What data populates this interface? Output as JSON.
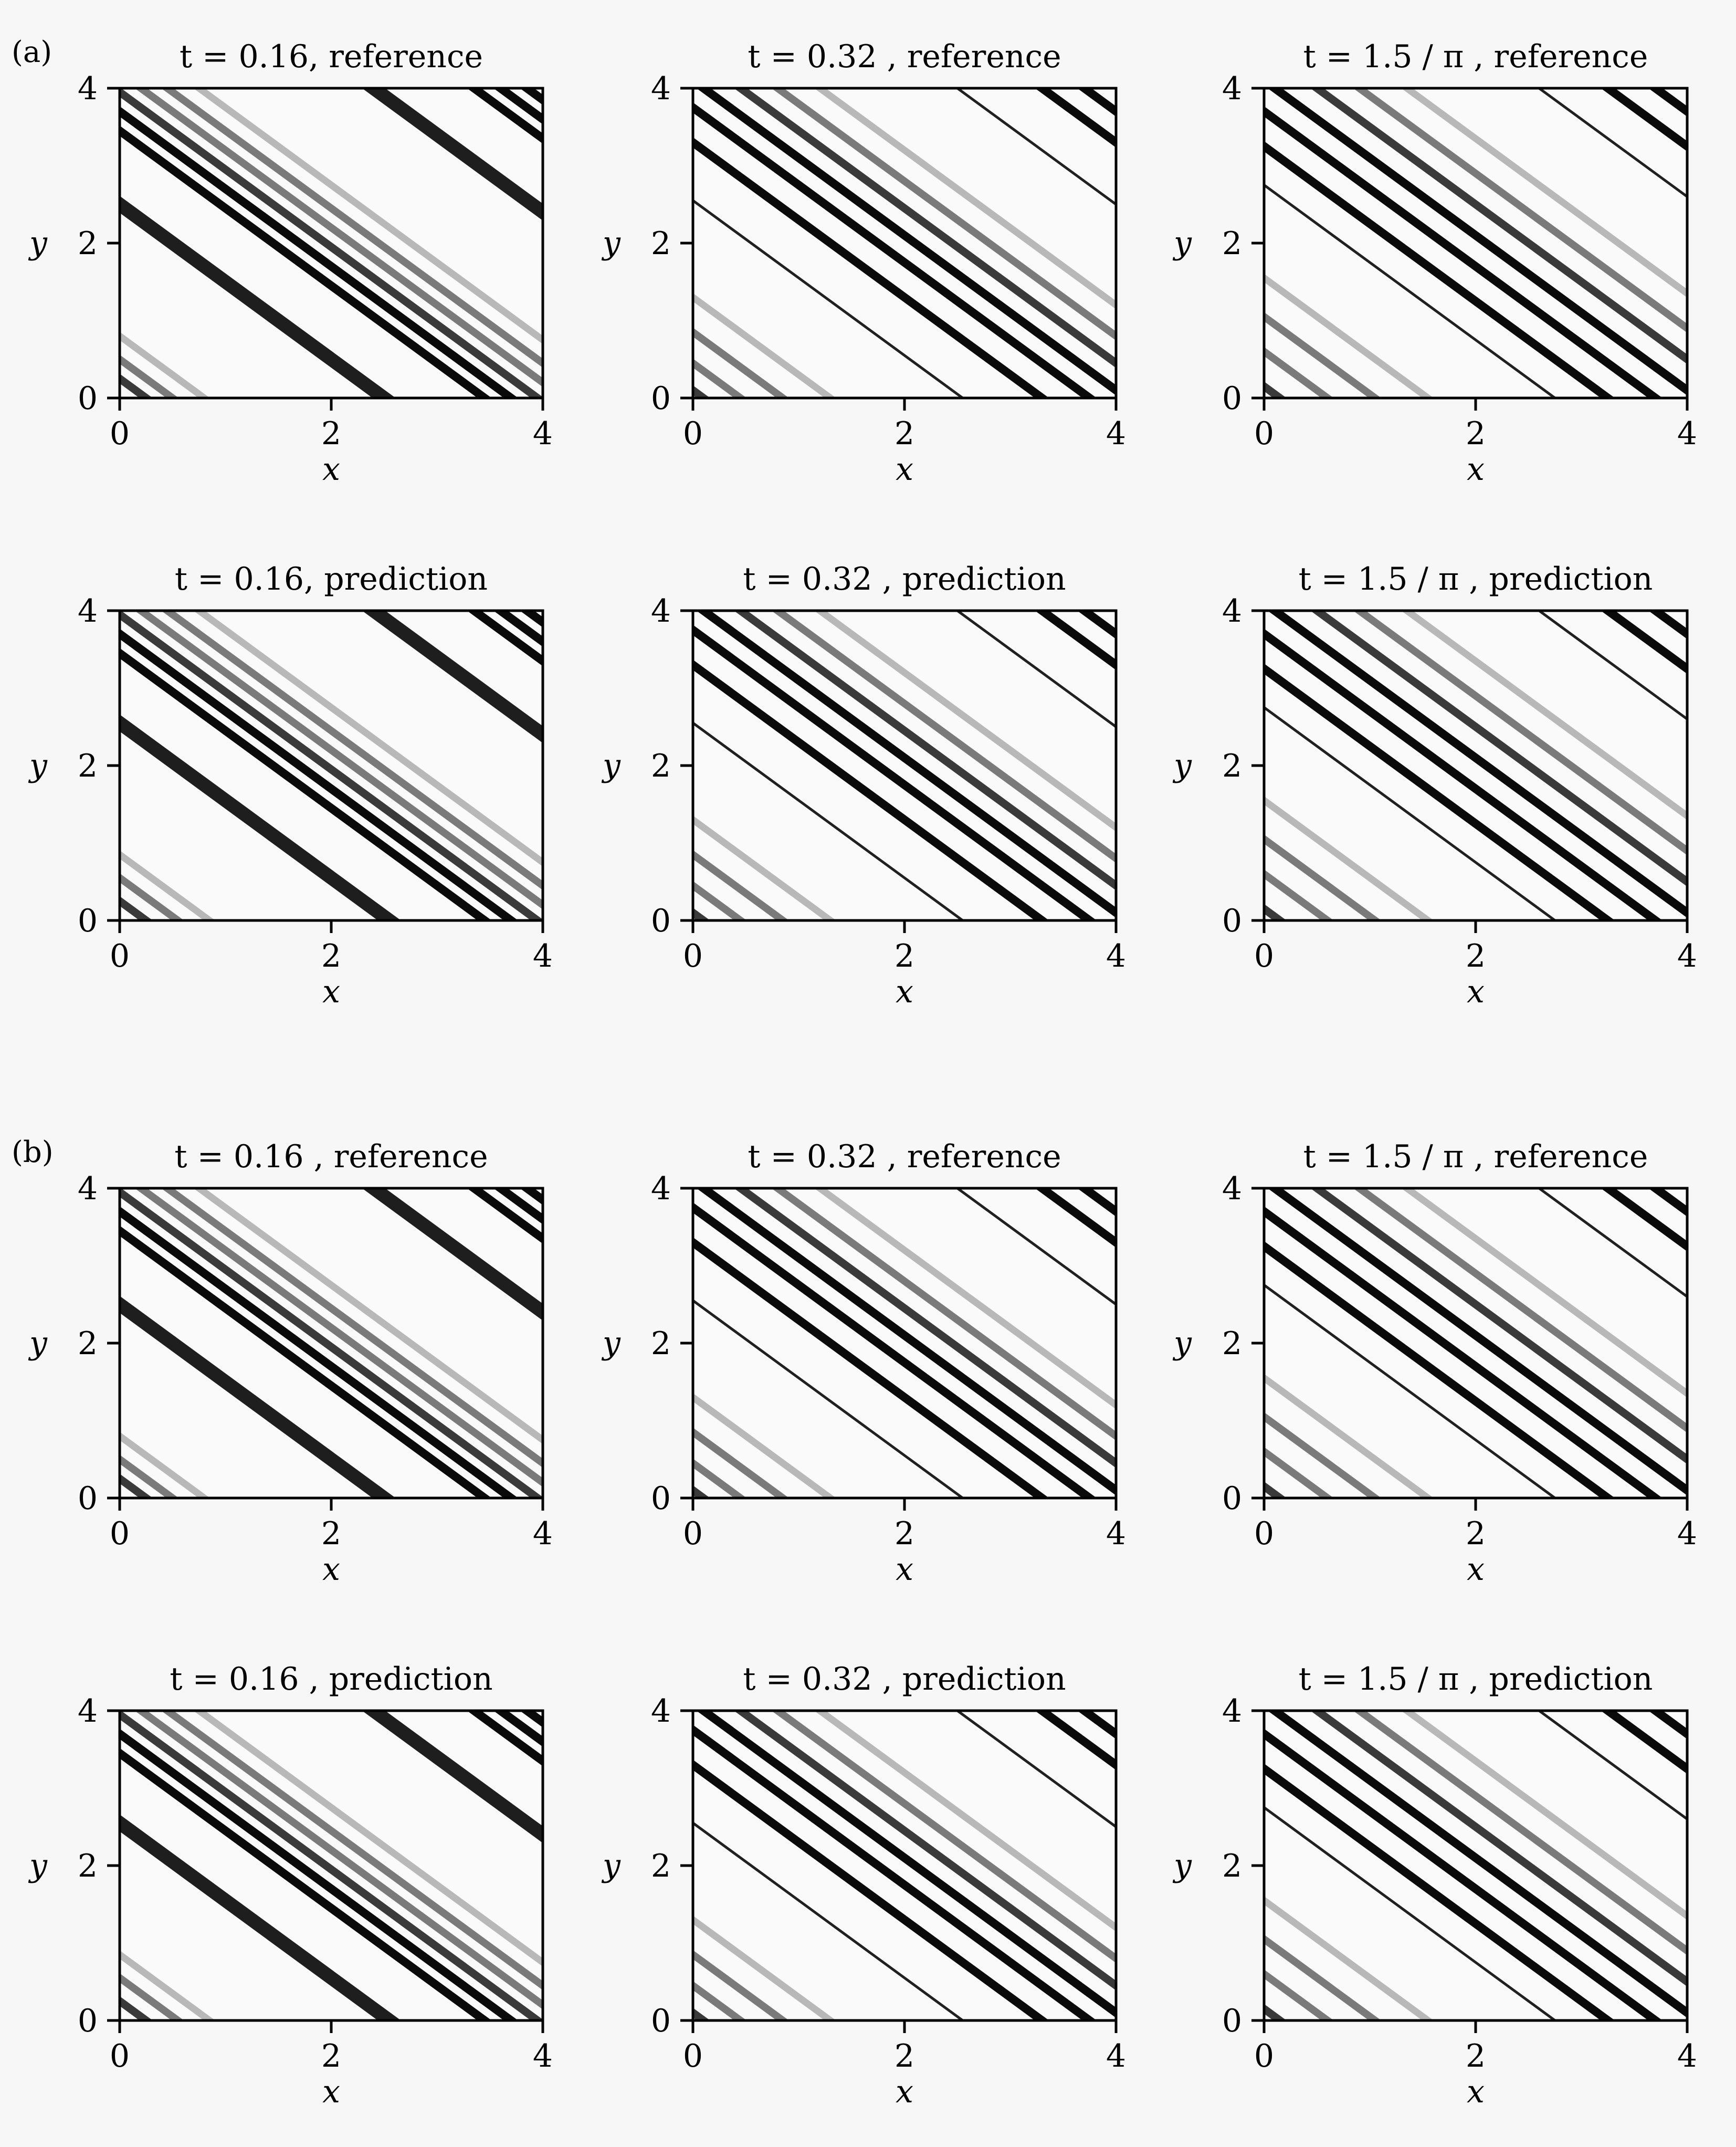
{
  "panel_labels": [
    "(a)",
    "(b)"
  ],
  "chart_data": [
    {
      "type": "heatmap",
      "group": "(a)",
      "title": "t = 0.16, reference",
      "xlabel": "x",
      "ylabel": "y",
      "xlim": [
        0,
        4
      ],
      "ylim": [
        0,
        4
      ],
      "xticks": [
        0,
        2,
        4
      ],
      "yticks": [
        0,
        2,
        4
      ],
      "stripes": [
        {
          "c": 0.8,
          "shade": "light"
        },
        {
          "c": 0.5,
          "shade": "medium"
        },
        {
          "c": 0.25,
          "shade": "dark"
        },
        {
          "c": 2.5,
          "shade": "black-wide"
        },
        {
          "c": 3.45,
          "shade": "black"
        },
        {
          "c": 3.7,
          "shade": "black"
        },
        {
          "c": 3.95,
          "shade": "dark"
        },
        {
          "c": 4.2,
          "shade": "medium"
        },
        {
          "c": 4.45,
          "shade": "medium"
        },
        {
          "c": 4.75,
          "shade": "light"
        },
        {
          "c": 6.4,
          "shade": "black-wide"
        },
        {
          "c": 7.35,
          "shade": "black"
        },
        {
          "c": 7.6,
          "shade": "black"
        },
        {
          "c": 7.85,
          "shade": "black"
        }
      ]
    },
    {
      "type": "heatmap",
      "group": "(a)",
      "title": "t = 0.32 , reference",
      "xlabel": "x",
      "ylabel": "y",
      "xlim": [
        0,
        4
      ],
      "ylim": [
        0,
        4
      ],
      "xticks": [
        0,
        2,
        4
      ],
      "yticks": [
        0,
        2,
        4
      ],
      "stripes": [
        {
          "c": 0.1,
          "shade": "dark"
        },
        {
          "c": 0.45,
          "shade": "medium"
        },
        {
          "c": 0.85,
          "shade": "medium"
        },
        {
          "c": 1.3,
          "shade": "light"
        },
        {
          "c": 2.55,
          "shade": "thin"
        },
        {
          "c": 3.3,
          "shade": "black"
        },
        {
          "c": 3.75,
          "shade": "black"
        },
        {
          "c": 4.1,
          "shade": "black"
        },
        {
          "c": 4.45,
          "shade": "dark"
        },
        {
          "c": 4.8,
          "shade": "medium"
        },
        {
          "c": 5.2,
          "shade": "light"
        },
        {
          "c": 6.5,
          "shade": "thin"
        },
        {
          "c": 7.3,
          "shade": "black"
        },
        {
          "c": 7.7,
          "shade": "black"
        }
      ]
    },
    {
      "type": "heatmap",
      "group": "(a)",
      "title": "t = 1.5 / π , reference",
      "xlabel": "x",
      "ylabel": "y",
      "xlim": [
        0,
        4
      ],
      "ylim": [
        0,
        4
      ],
      "xticks": [
        0,
        2,
        4
      ],
      "yticks": [
        0,
        2,
        4
      ],
      "stripes": [
        {
          "c": 0.15,
          "shade": "dark"
        },
        {
          "c": 0.6,
          "shade": "medium"
        },
        {
          "c": 1.05,
          "shade": "medium"
        },
        {
          "c": 1.55,
          "shade": "light"
        },
        {
          "c": 2.75,
          "shade": "thin"
        },
        {
          "c": 3.25,
          "shade": "black"
        },
        {
          "c": 3.7,
          "shade": "black"
        },
        {
          "c": 4.1,
          "shade": "black"
        },
        {
          "c": 4.5,
          "shade": "dark"
        },
        {
          "c": 4.9,
          "shade": "medium"
        },
        {
          "c": 5.35,
          "shade": "light"
        },
        {
          "c": 6.6,
          "shade": "thin"
        },
        {
          "c": 7.25,
          "shade": "black"
        },
        {
          "c": 7.7,
          "shade": "black"
        }
      ]
    },
    {
      "type": "heatmap",
      "group": "(a)",
      "title": "t = 0.16, prediction",
      "xlabel": "x",
      "ylabel": "y",
      "xlim": [
        0,
        4
      ],
      "ylim": [
        0,
        4
      ],
      "xticks": [
        0,
        2,
        4
      ],
      "yticks": [
        0,
        2,
        4
      ],
      "stripes": [
        {
          "c": 0.85,
          "shade": "light"
        },
        {
          "c": 0.55,
          "shade": "medium"
        },
        {
          "c": 0.25,
          "shade": "dark"
        },
        {
          "c": 2.55,
          "shade": "black-wide"
        },
        {
          "c": 3.45,
          "shade": "black"
        },
        {
          "c": 3.7,
          "shade": "black"
        },
        {
          "c": 3.95,
          "shade": "dark"
        },
        {
          "c": 4.2,
          "shade": "medium"
        },
        {
          "c": 4.45,
          "shade": "medium"
        },
        {
          "c": 4.75,
          "shade": "light"
        },
        {
          "c": 6.4,
          "shade": "black-wide"
        },
        {
          "c": 7.35,
          "shade": "black"
        },
        {
          "c": 7.6,
          "shade": "black"
        },
        {
          "c": 7.85,
          "shade": "black"
        }
      ]
    },
    {
      "type": "heatmap",
      "group": "(a)",
      "title": "t = 0.32 , prediction",
      "xlabel": "x",
      "ylabel": "y",
      "xlim": [
        0,
        4
      ],
      "ylim": [
        0,
        4
      ],
      "xticks": [
        0,
        2,
        4
      ],
      "yticks": [
        0,
        2,
        4
      ],
      "stripes": [
        {
          "c": 0.1,
          "shade": "dark"
        },
        {
          "c": 0.45,
          "shade": "medium"
        },
        {
          "c": 0.85,
          "shade": "medium"
        },
        {
          "c": 1.3,
          "shade": "light"
        },
        {
          "c": 2.55,
          "shade": "thin"
        },
        {
          "c": 3.3,
          "shade": "black"
        },
        {
          "c": 3.75,
          "shade": "black"
        },
        {
          "c": 4.1,
          "shade": "black"
        },
        {
          "c": 4.45,
          "shade": "dark"
        },
        {
          "c": 4.8,
          "shade": "medium"
        },
        {
          "c": 5.2,
          "shade": "light"
        },
        {
          "c": 6.5,
          "shade": "thin"
        },
        {
          "c": 7.3,
          "shade": "black"
        },
        {
          "c": 7.7,
          "shade": "black"
        }
      ]
    },
    {
      "type": "heatmap",
      "group": "(a)",
      "title": "t = 1.5 / π , prediction",
      "xlabel": "x",
      "ylabel": "y",
      "xlim": [
        0,
        4
      ],
      "ylim": [
        0,
        4
      ],
      "xticks": [
        0,
        2,
        4
      ],
      "yticks": [
        0,
        2,
        4
      ],
      "stripes": [
        {
          "c": 0.15,
          "shade": "dark"
        },
        {
          "c": 0.6,
          "shade": "medium"
        },
        {
          "c": 1.05,
          "shade": "medium"
        },
        {
          "c": 1.55,
          "shade": "light"
        },
        {
          "c": 2.75,
          "shade": "thin"
        },
        {
          "c": 3.25,
          "shade": "black"
        },
        {
          "c": 3.7,
          "shade": "black"
        },
        {
          "c": 4.1,
          "shade": "black"
        },
        {
          "c": 4.5,
          "shade": "dark"
        },
        {
          "c": 4.9,
          "shade": "medium"
        },
        {
          "c": 5.35,
          "shade": "light"
        },
        {
          "c": 6.6,
          "shade": "thin"
        },
        {
          "c": 7.25,
          "shade": "black"
        },
        {
          "c": 7.7,
          "shade": "black"
        }
      ]
    },
    {
      "type": "heatmap",
      "group": "(b)",
      "title": "t = 0.16 , reference",
      "xlabel": "x",
      "ylabel": "y",
      "xlim": [
        0,
        4
      ],
      "ylim": [
        0,
        4
      ],
      "xticks": [
        0,
        2,
        4
      ],
      "yticks": [
        0,
        2,
        4
      ],
      "stripes": [
        {
          "c": 0.8,
          "shade": "light"
        },
        {
          "c": 0.5,
          "shade": "medium"
        },
        {
          "c": 0.25,
          "shade": "dark"
        },
        {
          "c": 2.5,
          "shade": "black-wide"
        },
        {
          "c": 3.45,
          "shade": "black"
        },
        {
          "c": 3.7,
          "shade": "black"
        },
        {
          "c": 3.95,
          "shade": "dark"
        },
        {
          "c": 4.2,
          "shade": "medium"
        },
        {
          "c": 4.45,
          "shade": "medium"
        },
        {
          "c": 4.75,
          "shade": "light"
        },
        {
          "c": 6.4,
          "shade": "black-wide"
        },
        {
          "c": 7.35,
          "shade": "black"
        },
        {
          "c": 7.6,
          "shade": "black"
        },
        {
          "c": 7.85,
          "shade": "black"
        }
      ]
    },
    {
      "type": "heatmap",
      "group": "(b)",
      "title": "t = 0.32 , reference",
      "xlabel": "x",
      "ylabel": "y",
      "xlim": [
        0,
        4
      ],
      "ylim": [
        0,
        4
      ],
      "xticks": [
        0,
        2,
        4
      ],
      "yticks": [
        0,
        2,
        4
      ],
      "stripes": [
        {
          "c": 0.1,
          "shade": "dark"
        },
        {
          "c": 0.45,
          "shade": "medium"
        },
        {
          "c": 0.85,
          "shade": "medium"
        },
        {
          "c": 1.3,
          "shade": "light"
        },
        {
          "c": 2.55,
          "shade": "thin"
        },
        {
          "c": 3.3,
          "shade": "black"
        },
        {
          "c": 3.75,
          "shade": "black"
        },
        {
          "c": 4.1,
          "shade": "black"
        },
        {
          "c": 4.45,
          "shade": "dark"
        },
        {
          "c": 4.8,
          "shade": "medium"
        },
        {
          "c": 5.2,
          "shade": "light"
        },
        {
          "c": 6.5,
          "shade": "thin"
        },
        {
          "c": 7.3,
          "shade": "black"
        },
        {
          "c": 7.7,
          "shade": "black"
        }
      ]
    },
    {
      "type": "heatmap",
      "group": "(b)",
      "title": "t = 1.5 / π , reference",
      "xlabel": "x",
      "ylabel": "y",
      "xlim": [
        0,
        4
      ],
      "ylim": [
        0,
        4
      ],
      "xticks": [
        0,
        2,
        4
      ],
      "yticks": [
        0,
        2,
        4
      ],
      "stripes": [
        {
          "c": 0.15,
          "shade": "dark"
        },
        {
          "c": 0.6,
          "shade": "medium"
        },
        {
          "c": 1.05,
          "shade": "medium"
        },
        {
          "c": 1.55,
          "shade": "light"
        },
        {
          "c": 2.75,
          "shade": "thin"
        },
        {
          "c": 3.25,
          "shade": "black"
        },
        {
          "c": 3.7,
          "shade": "black"
        },
        {
          "c": 4.1,
          "shade": "black"
        },
        {
          "c": 4.5,
          "shade": "dark"
        },
        {
          "c": 4.9,
          "shade": "medium"
        },
        {
          "c": 5.35,
          "shade": "light"
        },
        {
          "c": 6.6,
          "shade": "thin"
        },
        {
          "c": 7.25,
          "shade": "black"
        },
        {
          "c": 7.7,
          "shade": "black"
        }
      ]
    },
    {
      "type": "heatmap",
      "group": "(b)",
      "title": "t = 0.16 , prediction",
      "xlabel": "x",
      "ylabel": "y",
      "xlim": [
        0,
        4
      ],
      "ylim": [
        0,
        4
      ],
      "xticks": [
        0,
        2,
        4
      ],
      "yticks": [
        0,
        2,
        4
      ],
      "stripes": [
        {
          "c": 0.85,
          "shade": "light"
        },
        {
          "c": 0.55,
          "shade": "medium"
        },
        {
          "c": 0.25,
          "shade": "dark"
        },
        {
          "c": 2.55,
          "shade": "black-wide"
        },
        {
          "c": 3.45,
          "shade": "black"
        },
        {
          "c": 3.7,
          "shade": "black"
        },
        {
          "c": 3.95,
          "shade": "dark"
        },
        {
          "c": 4.2,
          "shade": "medium"
        },
        {
          "c": 4.45,
          "shade": "medium"
        },
        {
          "c": 4.75,
          "shade": "light"
        },
        {
          "c": 6.4,
          "shade": "black-wide"
        },
        {
          "c": 7.35,
          "shade": "black"
        },
        {
          "c": 7.6,
          "shade": "black"
        },
        {
          "c": 7.85,
          "shade": "black"
        }
      ]
    },
    {
      "type": "heatmap",
      "group": "(b)",
      "title": "t = 0.32 , prediction",
      "xlabel": "x",
      "ylabel": "y",
      "xlim": [
        0,
        4
      ],
      "ylim": [
        0,
        4
      ],
      "xticks": [
        0,
        2,
        4
      ],
      "yticks": [
        0,
        2,
        4
      ],
      "stripes": [
        {
          "c": 0.1,
          "shade": "dark"
        },
        {
          "c": 0.45,
          "shade": "medium"
        },
        {
          "c": 0.85,
          "shade": "medium"
        },
        {
          "c": 1.3,
          "shade": "light"
        },
        {
          "c": 2.55,
          "shade": "thin"
        },
        {
          "c": 3.3,
          "shade": "black"
        },
        {
          "c": 3.75,
          "shade": "black"
        },
        {
          "c": 4.1,
          "shade": "black"
        },
        {
          "c": 4.45,
          "shade": "dark"
        },
        {
          "c": 4.8,
          "shade": "medium"
        },
        {
          "c": 5.2,
          "shade": "light"
        },
        {
          "c": 6.5,
          "shade": "thin"
        },
        {
          "c": 7.3,
          "shade": "black"
        },
        {
          "c": 7.7,
          "shade": "black"
        }
      ]
    },
    {
      "type": "heatmap",
      "group": "(b)",
      "title": "t = 1.5 / π , prediction",
      "xlabel": "x",
      "ylabel": "y",
      "xlim": [
        0,
        4
      ],
      "ylim": [
        0,
        4
      ],
      "xticks": [
        0,
        2,
        4
      ],
      "yticks": [
        0,
        2,
        4
      ],
      "stripes": [
        {
          "c": 0.15,
          "shade": "dark"
        },
        {
          "c": 0.6,
          "shade": "medium"
        },
        {
          "c": 1.05,
          "shade": "medium"
        },
        {
          "c": 1.55,
          "shade": "light"
        },
        {
          "c": 2.75,
          "shade": "thin"
        },
        {
          "c": 3.25,
          "shade": "black"
        },
        {
          "c": 3.7,
          "shade": "black"
        },
        {
          "c": 4.1,
          "shade": "black"
        },
        {
          "c": 4.5,
          "shade": "dark"
        },
        {
          "c": 4.9,
          "shade": "medium"
        },
        {
          "c": 5.35,
          "shade": "light"
        },
        {
          "c": 6.6,
          "shade": "thin"
        },
        {
          "c": 7.25,
          "shade": "black"
        },
        {
          "c": 7.7,
          "shade": "black"
        }
      ]
    }
  ]
}
